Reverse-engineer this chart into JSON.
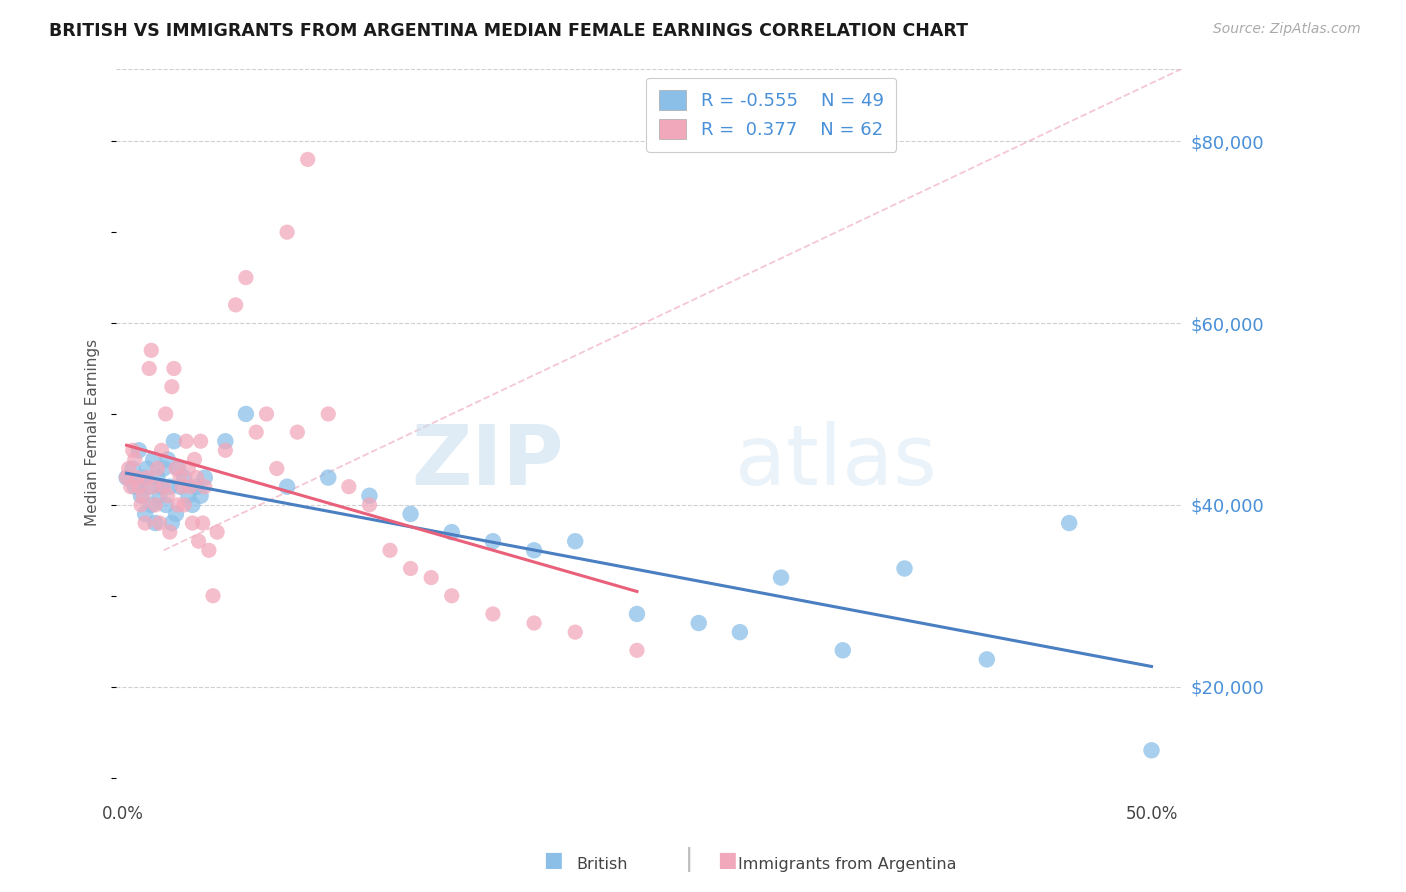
{
  "title": "BRITISH VS IMMIGRANTS FROM ARGENTINA MEDIAN FEMALE EARNINGS CORRELATION CHART",
  "source": "Source: ZipAtlas.com",
  "ylabel": "Median Female Earnings",
  "R_british": -0.555,
  "N_british": 49,
  "R_argentina": 0.377,
  "N_argentina": 62,
  "ytick_labels": [
    "$20,000",
    "$40,000",
    "$60,000",
    "$80,000"
  ],
  "ytick_values": [
    20000,
    40000,
    60000,
    80000
  ],
  "ymin": 8000,
  "ymax": 88000,
  "xmin": -0.003,
  "xmax": 0.515,
  "color_british": "#8BBFE8",
  "color_argentina": "#F2A8BB",
  "color_trendline_british": "#4A7FC1",
  "color_trendline_argentina": "#E8607A",
  "color_diagonal": "#E0A0B0",
  "watermark_zip": "ZIP",
  "watermark_atlas": "atlas",
  "legend_label1": "British",
  "legend_label2": "Immigrants from Argentina",
  "british_x": [
    0.002,
    0.005,
    0.006,
    0.008,
    0.009,
    0.01,
    0.011,
    0.012,
    0.013,
    0.014,
    0.015,
    0.016,
    0.017,
    0.018,
    0.019,
    0.02,
    0.021,
    0.022,
    0.023,
    0.024,
    0.025,
    0.026,
    0.027,
    0.028,
    0.03,
    0.032,
    0.034,
    0.036,
    0.038,
    0.04,
    0.05,
    0.06,
    0.08,
    0.1,
    0.12,
    0.14,
    0.16,
    0.18,
    0.2,
    0.22,
    0.25,
    0.28,
    0.3,
    0.32,
    0.35,
    0.38,
    0.42,
    0.46,
    0.5
  ],
  "british_y": [
    43000,
    44000,
    42000,
    46000,
    41000,
    43000,
    39000,
    44000,
    42000,
    40000,
    45000,
    38000,
    43000,
    41000,
    42000,
    44000,
    40000,
    45000,
    42000,
    38000,
    47000,
    39000,
    44000,
    42000,
    43000,
    41000,
    40000,
    42000,
    41000,
    43000,
    47000,
    50000,
    42000,
    43000,
    41000,
    39000,
    37000,
    36000,
    35000,
    36000,
    28000,
    27000,
    26000,
    32000,
    24000,
    33000,
    23000,
    38000,
    13000
  ],
  "argentina_x": [
    0.002,
    0.003,
    0.004,
    0.005,
    0.006,
    0.007,
    0.008,
    0.009,
    0.01,
    0.011,
    0.012,
    0.013,
    0.014,
    0.015,
    0.016,
    0.017,
    0.018,
    0.019,
    0.02,
    0.021,
    0.022,
    0.023,
    0.024,
    0.025,
    0.026,
    0.027,
    0.028,
    0.029,
    0.03,
    0.031,
    0.032,
    0.033,
    0.034,
    0.035,
    0.036,
    0.037,
    0.038,
    0.039,
    0.04,
    0.042,
    0.044,
    0.046,
    0.05,
    0.055,
    0.06,
    0.065,
    0.07,
    0.075,
    0.08,
    0.085,
    0.09,
    0.1,
    0.11,
    0.12,
    0.13,
    0.14,
    0.15,
    0.16,
    0.18,
    0.2,
    0.22,
    0.25
  ],
  "argentina_y": [
    43000,
    44000,
    42000,
    46000,
    45000,
    43000,
    42000,
    40000,
    41000,
    38000,
    43000,
    55000,
    57000,
    42000,
    40000,
    44000,
    38000,
    46000,
    42000,
    50000,
    41000,
    37000,
    53000,
    55000,
    44000,
    40000,
    43000,
    42000,
    40000,
    47000,
    44000,
    42000,
    38000,
    45000,
    43000,
    36000,
    47000,
    38000,
    42000,
    35000,
    30000,
    37000,
    46000,
    62000,
    65000,
    48000,
    50000,
    44000,
    70000,
    48000,
    78000,
    50000,
    42000,
    40000,
    35000,
    33000,
    32000,
    30000,
    28000,
    27000,
    26000,
    24000
  ]
}
